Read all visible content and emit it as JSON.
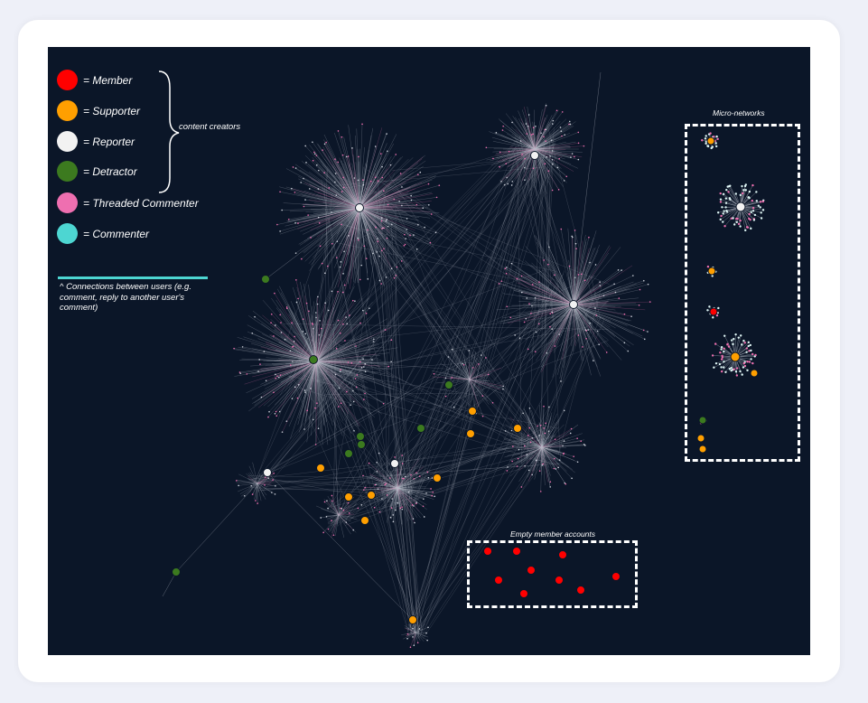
{
  "legend": {
    "items": [
      {
        "label": "= Member",
        "color": "#ff0000"
      },
      {
        "label": "= Supporter",
        "color": "#ff9f00"
      },
      {
        "label": "= Reporter",
        "color": "#f2f2f2"
      },
      {
        "label": "= Detractor",
        "color": "#3c7a1f"
      },
      {
        "label": "= Threaded Commenter",
        "color": "#ee6fb0"
      },
      {
        "label": "= Commenter",
        "color": "#4dd6d2"
      }
    ],
    "brace_label": "content creators",
    "connection_note": "^ Connections between users (e.g. comment, reply to another user's comment)",
    "connection_color": "#4dd6d2"
  },
  "micro_networks": {
    "label": "Micro-networks"
  },
  "empty_members": {
    "label": "Empty member accounts"
  },
  "colors": {
    "background": "#0b1628",
    "edge": "#b8bcc8",
    "card": "#ffffff",
    "page": "#eef0f8"
  }
}
